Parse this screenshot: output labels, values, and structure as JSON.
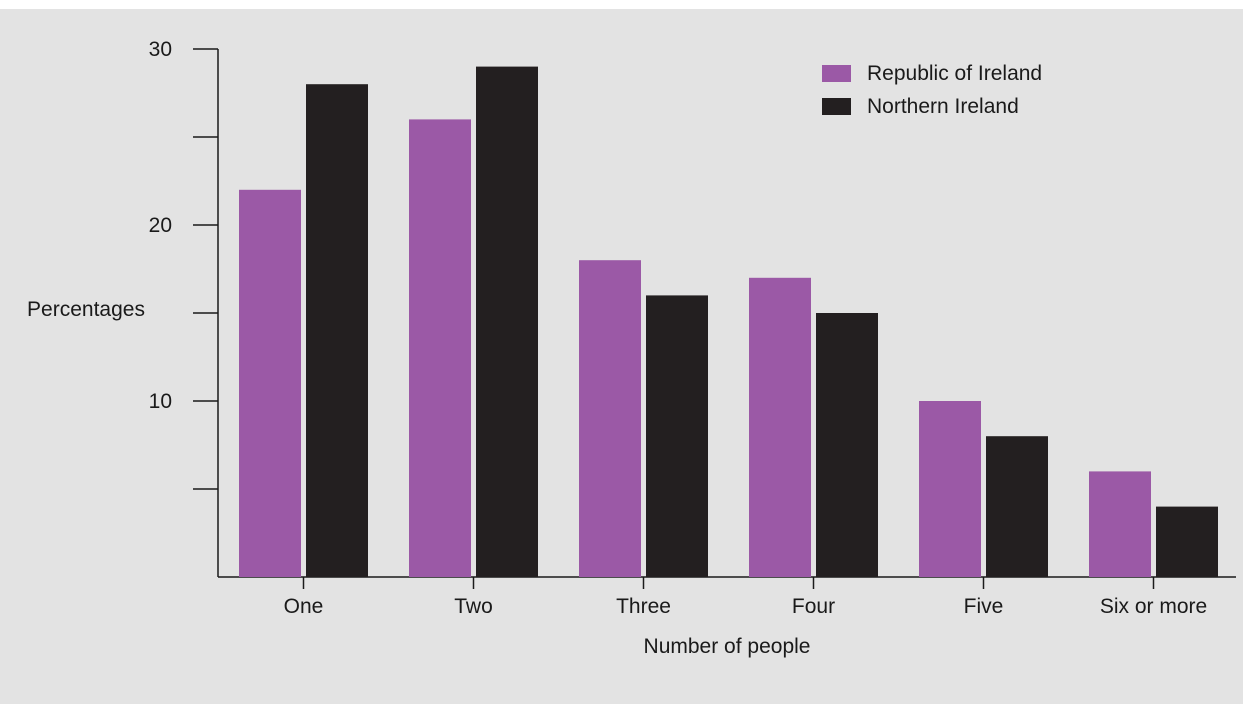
{
  "chart_data": {
    "type": "bar",
    "categories": [
      "One",
      "Two",
      "Three",
      "Four",
      "Five",
      "Six or more"
    ],
    "series": [
      {
        "name": "Republic of Ireland",
        "color": "#9b59a6",
        "values": [
          22,
          26,
          18,
          17,
          10,
          6
        ]
      },
      {
        "name": "Northern Ireland",
        "color": "#231f20",
        "values": [
          28,
          29,
          16,
          15,
          8,
          4
        ]
      }
    ],
    "title": "",
    "xlabel": "Number of people",
    "ylabel": "Percentages",
    "ylim": [
      0,
      30
    ],
    "yticks": [
      0,
      5,
      10,
      15,
      20,
      25,
      30
    ],
    "ytick_labels": [
      "",
      "",
      "10",
      "",
      "20",
      "",
      "30"
    ],
    "grid": false,
    "legend_position": "top-right",
    "background_color": "#e3e3e3"
  }
}
